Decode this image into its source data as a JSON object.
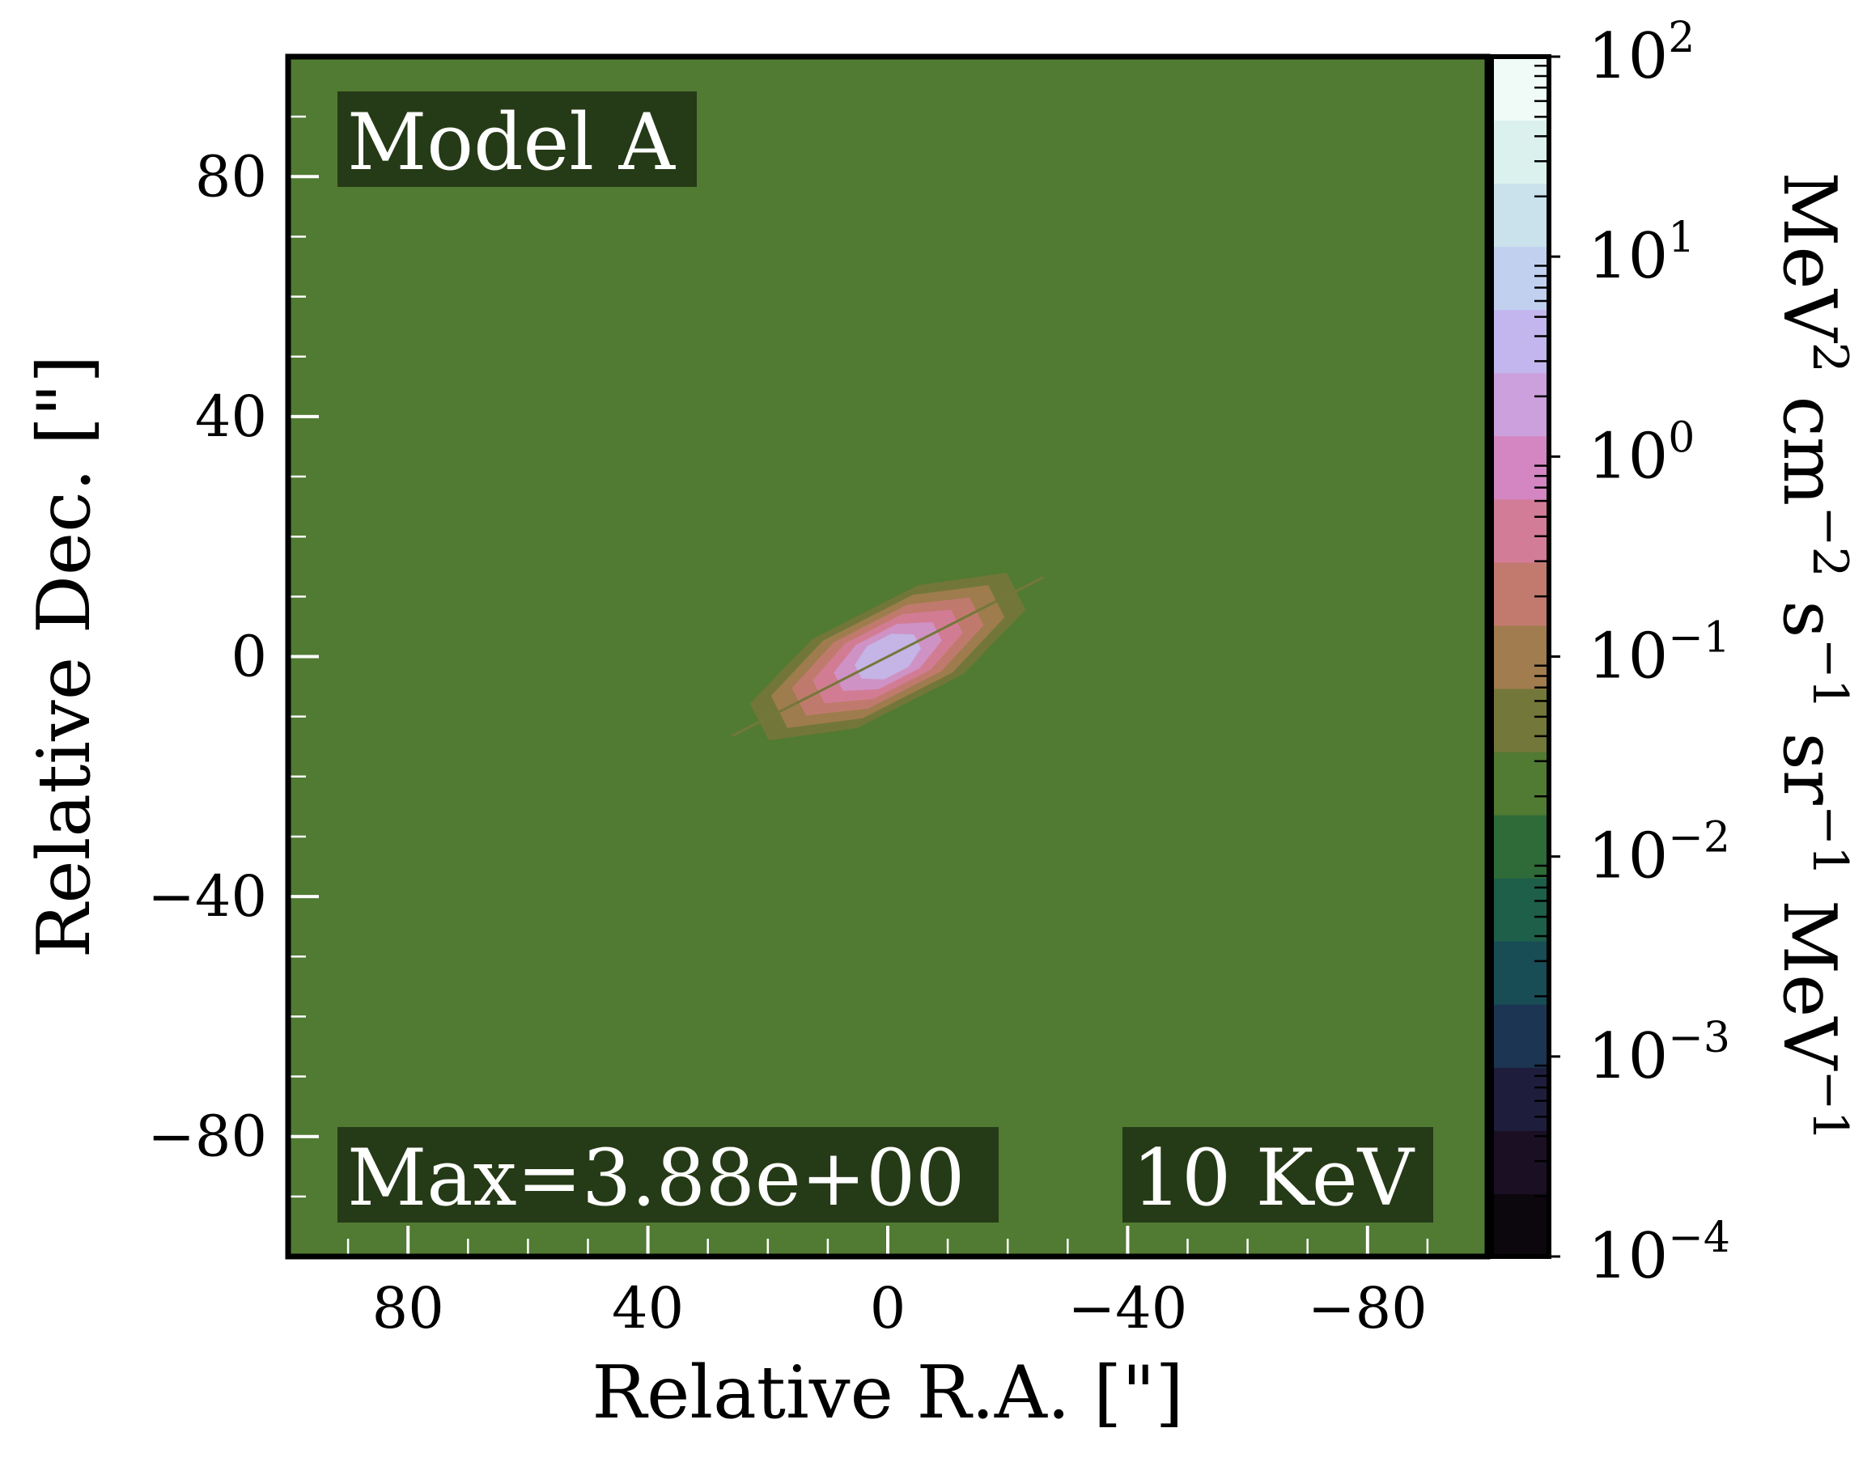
{
  "chart_data": {
    "type": "heatmap",
    "xlabel": "Relative R.A. [\"]",
    "ylabel": "Relative Dec. [\"]",
    "xlim": [
      100,
      -100
    ],
    "ylim": [
      -100,
      100
    ],
    "x_ticks": [
      80,
      40,
      0,
      -40,
      -80
    ],
    "y_ticks": [
      80,
      40,
      0,
      -40,
      -80
    ],
    "x_tick_labels": [
      "80",
      "40",
      "0",
      "−40",
      "−80"
    ],
    "y_tick_labels": [
      "80",
      "40",
      "0",
      "−40",
      "−80"
    ],
    "annotations": {
      "model": "Model A",
      "max": "Max=3.88e+00",
      "energy": "10 KeV"
    },
    "background_value": 0.02,
    "source": {
      "center_x": 0,
      "center_y": 0,
      "major_extent": 26,
      "minor_extent": 9,
      "position_angle_deg": 63,
      "peak_value": 3.88,
      "contour_levels": [
        0.05,
        0.1,
        0.2,
        0.5,
        1.0,
        2.0
      ],
      "contour_colors": [
        "#74773a",
        "#a07c4e",
        "#c27a6f",
        "#d37c97",
        "#cf93c6",
        "#c4b6e8"
      ]
    },
    "colorbar": {
      "label_parts": [
        "MeV",
        "2",
        " cm",
        "−2",
        " s",
        "−1",
        " sr",
        "−1",
        " MeV",
        "−1"
      ],
      "scale": "log",
      "range": [
        0.0001,
        100
      ],
      "tick_exponents": [
        "−4",
        "−3",
        "−2",
        "−1",
        "0",
        "1",
        "2"
      ],
      "tick_base": "10",
      "levels_per_decade": 3,
      "colors": [
        "#0c060d",
        "#1b1023",
        "#1e1e3c",
        "#1b3552",
        "#184d55",
        "#1e5f49",
        "#2e6b38",
        "#517a32",
        "#74773a",
        "#a07c4e",
        "#c27a6f",
        "#d37c97",
        "#d386c1",
        "#cca0dc",
        "#c3b6ee",
        "#c2d0f0",
        "#c9e2ec",
        "#daf1ee",
        "#f0fbf7"
      ]
    }
  }
}
